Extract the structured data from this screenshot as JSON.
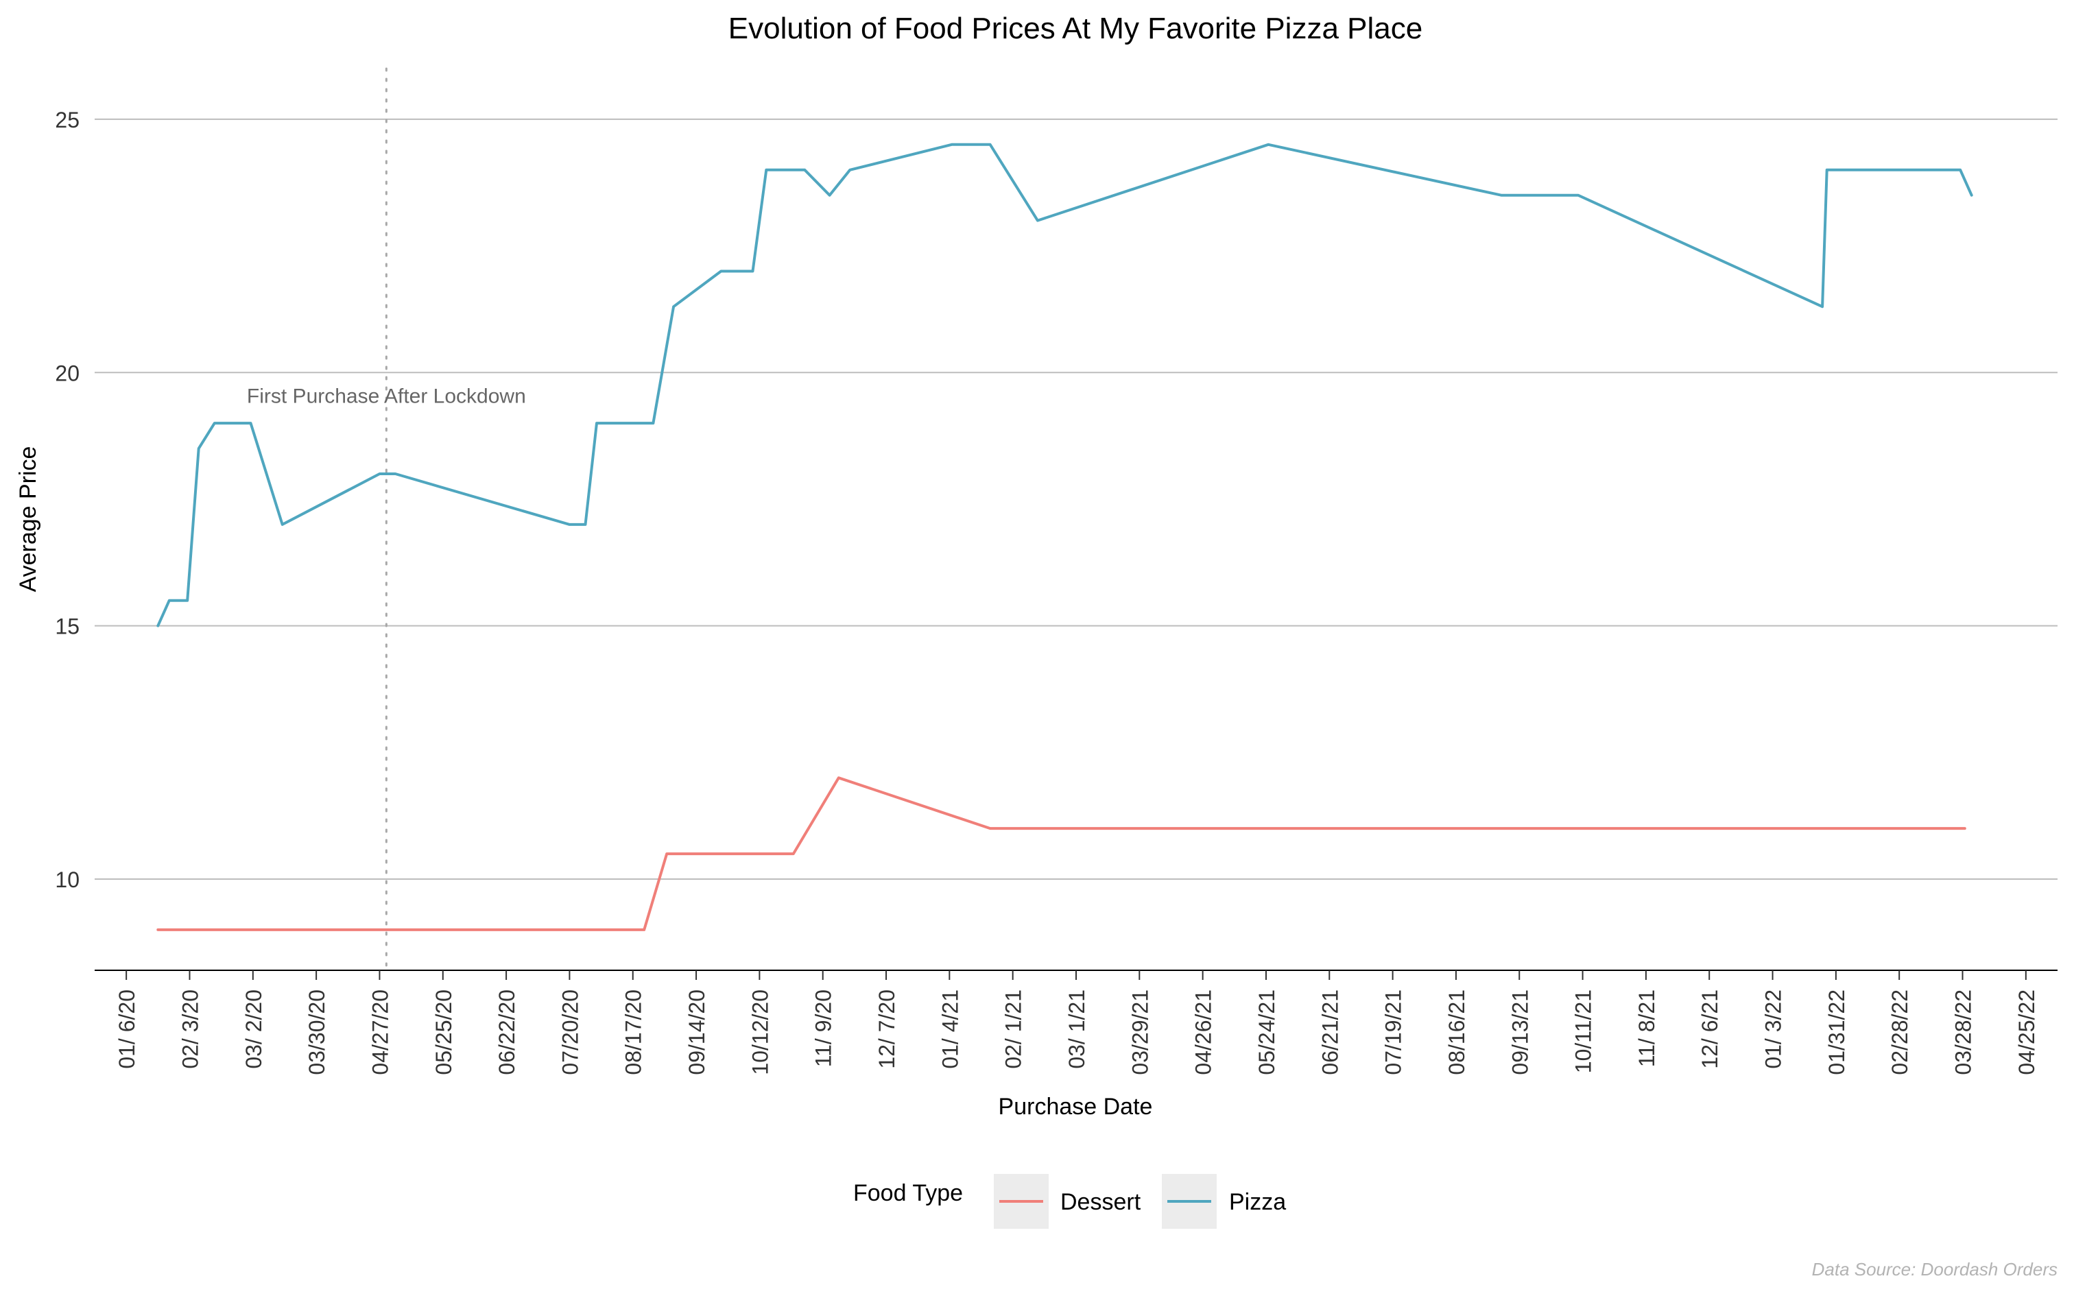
{
  "chart_data": {
    "type": "line",
    "title": "Evolution of Food Prices At My Favorite Pizza Place",
    "xlabel": "Purchase Date",
    "ylabel": "Average Price",
    "ylim": [
      8.2,
      26
    ],
    "y_ticks": [
      10,
      15,
      20,
      25
    ],
    "x_domain": [
      "2019-12-23",
      "2022-05-09"
    ],
    "x_ticks": [
      {
        "date": "2020-01-06",
        "label": "01/ 6/20"
      },
      {
        "date": "2020-02-03",
        "label": "02/ 3/20"
      },
      {
        "date": "2020-03-02",
        "label": "03/ 2/20"
      },
      {
        "date": "2020-03-30",
        "label": "03/30/20"
      },
      {
        "date": "2020-04-27",
        "label": "04/27/20"
      },
      {
        "date": "2020-05-25",
        "label": "05/25/20"
      },
      {
        "date": "2020-06-22",
        "label": "06/22/20"
      },
      {
        "date": "2020-07-20",
        "label": "07/20/20"
      },
      {
        "date": "2020-08-17",
        "label": "08/17/20"
      },
      {
        "date": "2020-09-14",
        "label": "09/14/20"
      },
      {
        "date": "2020-10-12",
        "label": "10/12/20"
      },
      {
        "date": "2020-11-09",
        "label": "11/ 9/20"
      },
      {
        "date": "2020-12-07",
        "label": "12/ 7/20"
      },
      {
        "date": "2021-01-04",
        "label": "01/ 4/21"
      },
      {
        "date": "2021-02-01",
        "label": "02/ 1/21"
      },
      {
        "date": "2021-03-01",
        "label": "03/ 1/21"
      },
      {
        "date": "2021-03-29",
        "label": "03/29/21"
      },
      {
        "date": "2021-04-26",
        "label": "04/26/21"
      },
      {
        "date": "2021-05-24",
        "label": "05/24/21"
      },
      {
        "date": "2021-06-21",
        "label": "06/21/21"
      },
      {
        "date": "2021-07-19",
        "label": "07/19/21"
      },
      {
        "date": "2021-08-16",
        "label": "08/16/21"
      },
      {
        "date": "2021-09-13",
        "label": "09/13/21"
      },
      {
        "date": "2021-10-11",
        "label": "10/11/21"
      },
      {
        "date": "2021-11-08",
        "label": "11/ 8/21"
      },
      {
        "date": "2021-12-06",
        "label": "12/ 6/21"
      },
      {
        "date": "2022-01-03",
        "label": "01/ 3/22"
      },
      {
        "date": "2022-01-31",
        "label": "01/31/22"
      },
      {
        "date": "2022-02-28",
        "label": "02/28/22"
      },
      {
        "date": "2022-03-28",
        "label": "03/28/22"
      },
      {
        "date": "2022-04-25",
        "label": "04/25/22"
      }
    ],
    "grid": "horizontal",
    "legend": {
      "title": "Food Type",
      "position": "bottom"
    },
    "series": [
      {
        "name": "Dessert",
        "color": "#f07f79",
        "points": [
          {
            "x": "2020-01-20",
            "y": 9.0
          },
          {
            "x": "2020-08-22",
            "y": 9.0
          },
          {
            "x": "2020-09-01",
            "y": 10.5
          },
          {
            "x": "2020-10-27",
            "y": 10.5
          },
          {
            "x": "2020-11-16",
            "y": 12.0
          },
          {
            "x": "2021-01-22",
            "y": 11.0
          },
          {
            "x": "2022-03-29",
            "y": 11.0
          }
        ]
      },
      {
        "name": "Pizza",
        "color": "#4fa6bf",
        "points": [
          {
            "x": "2020-01-20",
            "y": 15.0
          },
          {
            "x": "2020-01-25",
            "y": 15.5
          },
          {
            "x": "2020-02-02",
            "y": 15.5
          },
          {
            "x": "2020-02-07",
            "y": 18.5
          },
          {
            "x": "2020-02-14",
            "y": 19.0
          },
          {
            "x": "2020-03-01",
            "y": 19.0
          },
          {
            "x": "2020-03-08",
            "y": 18.0
          },
          {
            "x": "2020-03-15",
            "y": 17.0
          },
          {
            "x": "2020-04-27",
            "y": 18.0
          },
          {
            "x": "2020-05-04",
            "y": 18.0
          },
          {
            "x": "2020-07-20",
            "y": 17.0
          },
          {
            "x": "2020-07-27",
            "y": 17.0
          },
          {
            "x": "2020-08-01",
            "y": 19.0
          },
          {
            "x": "2020-08-26",
            "y": 19.0
          },
          {
            "x": "2020-09-04",
            "y": 21.3
          },
          {
            "x": "2020-09-25",
            "y": 22.0
          },
          {
            "x": "2020-10-09",
            "y": 22.0
          },
          {
            "x": "2020-10-15",
            "y": 24.0
          },
          {
            "x": "2020-11-01",
            "y": 24.0
          },
          {
            "x": "2020-11-12",
            "y": 23.5
          },
          {
            "x": "2020-11-21",
            "y": 24.0
          },
          {
            "x": "2021-01-05",
            "y": 24.5
          },
          {
            "x": "2021-01-22",
            "y": 24.5
          },
          {
            "x": "2021-02-12",
            "y": 23.0
          },
          {
            "x": "2021-05-25",
            "y": 24.5
          },
          {
            "x": "2021-09-05",
            "y": 23.5
          },
          {
            "x": "2021-10-09",
            "y": 23.5
          },
          {
            "x": "2022-01-25",
            "y": 21.3
          },
          {
            "x": "2022-01-27",
            "y": 24.0
          },
          {
            "x": "2022-03-27",
            "y": 24.0
          },
          {
            "x": "2022-04-01",
            "y": 23.5
          }
        ]
      }
    ],
    "annotations": [
      {
        "type": "vline",
        "x": "2020-04-30",
        "style": "dotted",
        "color": "#a8a8a8"
      },
      {
        "type": "text",
        "text": "First Purchase After Lockdown",
        "x": "2020-04-30",
        "y": 19.4,
        "color": "#666666"
      }
    ],
    "caption": "Data Source: Doordash Orders"
  }
}
